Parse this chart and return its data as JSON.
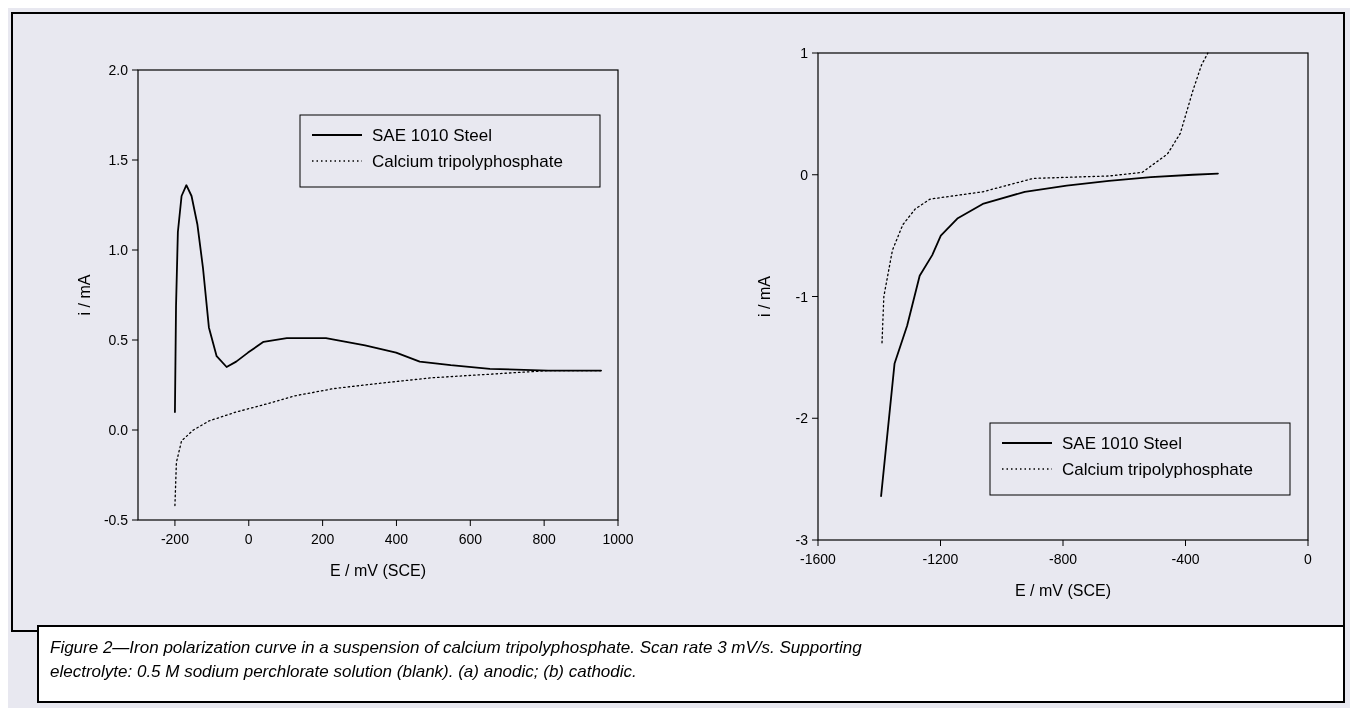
{
  "chart_data": [
    {
      "type": "line",
      "xlabel": "E / mV (SCE)",
      "ylabel": "i / mA",
      "xlim": [
        -300,
        1000
      ],
      "ylim": [
        -0.5,
        2.0
      ],
      "xticks": [
        -200,
        0,
        200,
        400,
        600,
        800,
        1000
      ],
      "yticks": [
        {
          "value": 2,
          "label": "2.0"
        },
        1.5,
        {
          "value": 1,
          "label": "1.0"
        },
        0.5,
        {
          "value": 0,
          "label": "0.0"
        },
        -0.5
      ],
      "legend": "top right",
      "grid": false,
      "annotations": [
        "Figure 2—Iron polarization curve in a suspension of calcium tripolyphosphate. Scan rate 3 mV/s. Supporting electrolyte: 0.5 M sodium perchlorate solution (blank). (a) anodic; (b) cathodic."
      ],
      "series": [
        {
          "name": "SAE 1010 Steel",
          "color": "#000000",
          "line_style": "solid",
          "x": [
            -200,
            -197,
            -192,
            -182,
            -169,
            -155,
            -139,
            -124,
            -108,
            -87,
            -60,
            -34,
            -2,
            40,
            103,
            209,
            315,
            399,
            463,
            547,
            653,
            811,
            954
          ],
          "values": [
            0.1,
            0.69,
            1.1,
            1.3,
            1.36,
            1.3,
            1.14,
            0.9,
            0.57,
            0.41,
            0.35,
            0.38,
            0.43,
            0.49,
            0.51,
            0.51,
            0.47,
            0.43,
            0.38,
            0.36,
            0.34,
            0.33,
            0.33
          ]
        },
        {
          "name": "Calcium tripolyphosphate",
          "color": "#000000",
          "line_style": "dotted",
          "x": [
            -200,
            -196,
            -182,
            -150,
            -108,
            -34,
            40,
            125,
            230,
            357,
            494,
            653,
            811,
            954
          ],
          "values": [
            -0.42,
            -0.18,
            -0.06,
            0.0,
            0.05,
            0.1,
            0.14,
            0.19,
            0.23,
            0.26,
            0.29,
            0.31,
            0.33,
            0.33
          ]
        }
      ]
    },
    {
      "type": "line",
      "xlabel": "E / mV (SCE)",
      "ylabel": "i / mA",
      "xlim": [
        -1600,
        0
      ],
      "ylim": [
        -3,
        1
      ],
      "xticks": [
        -1600,
        -1200,
        -800,
        -400,
        0
      ],
      "yticks": [
        1,
        0,
        -1,
        -2,
        -3
      ],
      "legend": "bottom right",
      "grid": false,
      "series": [
        {
          "name": "SAE 1010 Steel",
          "color": "#000000",
          "line_style": "solid",
          "x": [
            -1394,
            -1350,
            -1309,
            -1268,
            -1227,
            -1199,
            -1145,
            -1062,
            -925,
            -788,
            -650,
            -513,
            -376,
            -294
          ],
          "values": [
            -2.64,
            -1.55,
            -1.24,
            -0.83,
            -0.66,
            -0.5,
            -0.36,
            -0.24,
            -0.14,
            -0.09,
            -0.05,
            -0.02,
            0,
            0.01
          ]
        },
        {
          "name": "Calcium tripolyphosphate",
          "color": "#000000",
          "line_style": "dotted",
          "x": [
            -1391,
            -1385,
            -1357,
            -1323,
            -1282,
            -1234,
            -1062,
            -897,
            -650,
            -541,
            -459,
            -417,
            -376,
            -348,
            -327
          ],
          "values": [
            -1.38,
            -1.0,
            -0.62,
            -0.41,
            -0.28,
            -0.2,
            -0.14,
            -0.03,
            -0.01,
            0.02,
            0.17,
            0.34,
            0.69,
            0.9,
            1.0
          ]
        }
      ]
    }
  ]
}
